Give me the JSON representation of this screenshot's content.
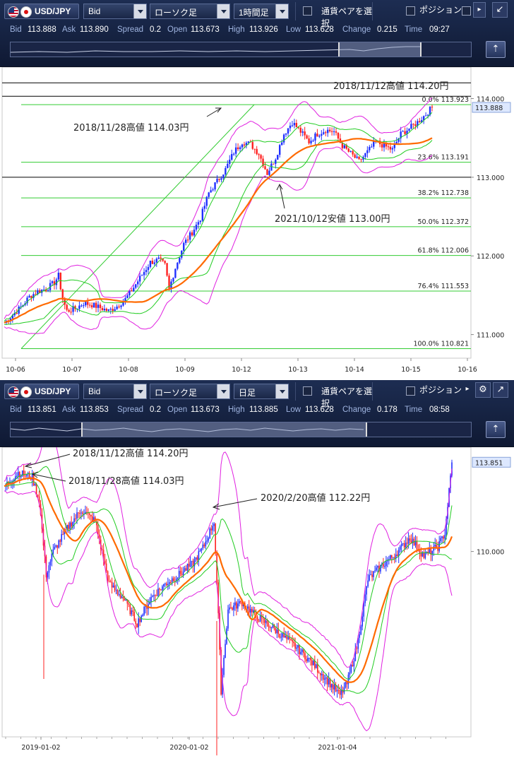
{
  "panels": [
    {
      "toolbar": {
        "pair": "USD/JPY",
        "price_type": "Bid",
        "chart_style": "ローソク足",
        "timeframe": "1時間足",
        "pair_select_label": "通貨ペアを選択",
        "position_label": "ポジション",
        "icon_names": [
          "us-flag-icon",
          "japan-flag-icon",
          "expand-icon"
        ]
      },
      "quote": {
        "bid_label": "Bid",
        "bid": "113.888",
        "ask_label": "Ask",
        "ask": "113.890",
        "spread_label": "Spread",
        "spread": "0.2",
        "open_label": "Open",
        "open": "113.673",
        "high_label": "High",
        "high": "113.926",
        "low_label": "Low",
        "low": "113.628",
        "change_label": "Change",
        "change": "0.215",
        "time_label": "Time",
        "time": "09:27"
      },
      "price_tag": "113.888"
    },
    {
      "toolbar": {
        "pair": "USD/JPY",
        "price_type": "Bid",
        "chart_style": "ローソク足",
        "timeframe": "日足",
        "pair_select_label": "通貨ペアを選択",
        "position_label": "ポジション",
        "icon_names": [
          "us-flag-icon",
          "japan-flag-icon",
          "gear-icon",
          "expand-icon"
        ]
      },
      "quote": {
        "bid_label": "Bid",
        "bid": "113.851",
        "ask_label": "Ask",
        "ask": "113.853",
        "spread_label": "Spread",
        "spread": "0.2",
        "open_label": "Open",
        "open": "113.673",
        "high_label": "High",
        "high": "113.885",
        "low_label": "Low",
        "low": "113.628",
        "change_label": "Change",
        "change": "0.178",
        "time_label": "Time",
        "time": "08:58"
      },
      "price_tag": "113.851"
    }
  ],
  "colors": {
    "toolbar_bg": "#1a2747",
    "up_candle": "#1f2fff",
    "down_candle": "#ff2020",
    "bollinger": "#e020e0",
    "inner_band": "#20cc20",
    "moving_average": "#ff6a00",
    "fib_line": "#33cc33",
    "horizontal_line": "#000000"
  },
  "chart_data": [
    {
      "type": "candlestick",
      "title": "",
      "timeframe": "1時間足",
      "x_ticks": [
        "10-06",
        "10-07",
        "10-08",
        "10-09",
        "10-12",
        "10-13",
        "10-14",
        "10-15",
        "10-16"
      ],
      "y_ticks": [
        "111.000",
        "112.000",
        "113.000",
        "114.000"
      ],
      "ylim": [
        110.7,
        114.4
      ],
      "grid": false,
      "indicators": [
        "Bollinger Bands",
        "Moving Average",
        "Fibonacci Retracement"
      ],
      "current_price": 113.888,
      "close_path": [
        {
          "x": 0,
          "y": 111.15
        },
        {
          "x": 4,
          "y": 111.25
        },
        {
          "x": 8,
          "y": 111.35
        },
        {
          "x": 12,
          "y": 111.48
        },
        {
          "x": 16,
          "y": 111.55
        },
        {
          "x": 20,
          "y": 111.58
        },
        {
          "x": 24,
          "y": 111.66
        },
        {
          "x": 26,
          "y": 111.75
        },
        {
          "x": 28,
          "y": 111.45
        },
        {
          "x": 30,
          "y": 111.3
        },
        {
          "x": 34,
          "y": 111.33
        },
        {
          "x": 38,
          "y": 111.4
        },
        {
          "x": 42,
          "y": 111.38
        },
        {
          "x": 46,
          "y": 111.34
        },
        {
          "x": 50,
          "y": 111.3
        },
        {
          "x": 54,
          "y": 111.36
        },
        {
          "x": 58,
          "y": 111.45
        },
        {
          "x": 62,
          "y": 111.6
        },
        {
          "x": 66,
          "y": 111.76
        },
        {
          "x": 70,
          "y": 111.92
        },
        {
          "x": 74,
          "y": 111.95
        },
        {
          "x": 77,
          "y": 111.88
        },
        {
          "x": 79,
          "y": 111.58
        },
        {
          "x": 82,
          "y": 111.85
        },
        {
          "x": 86,
          "y": 112.15
        },
        {
          "x": 90,
          "y": 112.3
        },
        {
          "x": 94,
          "y": 112.48
        },
        {
          "x": 98,
          "y": 112.8
        },
        {
          "x": 102,
          "y": 112.95
        },
        {
          "x": 106,
          "y": 113.1
        },
        {
          "x": 110,
          "y": 113.32
        },
        {
          "x": 114,
          "y": 113.45
        },
        {
          "x": 118,
          "y": 113.42
        },
        {
          "x": 122,
          "y": 113.3
        },
        {
          "x": 126,
          "y": 113.05
        },
        {
          "x": 130,
          "y": 113.25
        },
        {
          "x": 134,
          "y": 113.55
        },
        {
          "x": 138,
          "y": 113.7
        },
        {
          "x": 142,
          "y": 113.58
        },
        {
          "x": 146,
          "y": 113.45
        },
        {
          "x": 150,
          "y": 113.55
        },
        {
          "x": 154,
          "y": 113.6
        },
        {
          "x": 158,
          "y": 113.58
        },
        {
          "x": 162,
          "y": 113.4
        },
        {
          "x": 166,
          "y": 113.3
        },
        {
          "x": 170,
          "y": 113.2
        },
        {
          "x": 174,
          "y": 113.32
        },
        {
          "x": 178,
          "y": 113.45
        },
        {
          "x": 182,
          "y": 113.4
        },
        {
          "x": 186,
          "y": 113.35
        },
        {
          "x": 190,
          "y": 113.55
        },
        {
          "x": 194,
          "y": 113.62
        },
        {
          "x": 198,
          "y": 113.7
        },
        {
          "x": 202,
          "y": 113.8
        },
        {
          "x": 205,
          "y": 113.89
        }
      ],
      "fibonacci": [
        {
          "label": "0.0%",
          "value": 113.923
        },
        {
          "label": "23.6%",
          "value": 113.191
        },
        {
          "label": "38.2%",
          "value": 112.738
        },
        {
          "label": "50.0%",
          "value": 112.372
        },
        {
          "label": "61.8%",
          "value": 112.006
        },
        {
          "label": "76.4%",
          "value": 111.553
        },
        {
          "label": "100.0%",
          "value": 110.821
        }
      ],
      "horizontal_lines": [
        114.2,
        114.03,
        113.0
      ],
      "annotations": [
        {
          "text": "2018/11/12高値 114.20円",
          "price": 114.2
        },
        {
          "text": "2018/11/28高値 114.03円",
          "price": 114.03
        },
        {
          "text": "2021/10/12安値 113.00円",
          "price": 113.0
        }
      ]
    },
    {
      "type": "candlestick",
      "title": "",
      "timeframe": "日足",
      "x_ticks": [
        "2019-01-02",
        "2020-01-02",
        "2021-01-04"
      ],
      "y_ticks": [
        "110.000"
      ],
      "grid": false,
      "indicators": [
        "Bollinger Bands",
        "Moving Average"
      ],
      "current_price": 113.851,
      "annotations": [
        {
          "text": "2018/11/12高値 114.20円"
        },
        {
          "text": "2018/11/28高値 114.03円"
        },
        {
          "text": "2020/2/20高値 112.22円"
        }
      ]
    }
  ]
}
